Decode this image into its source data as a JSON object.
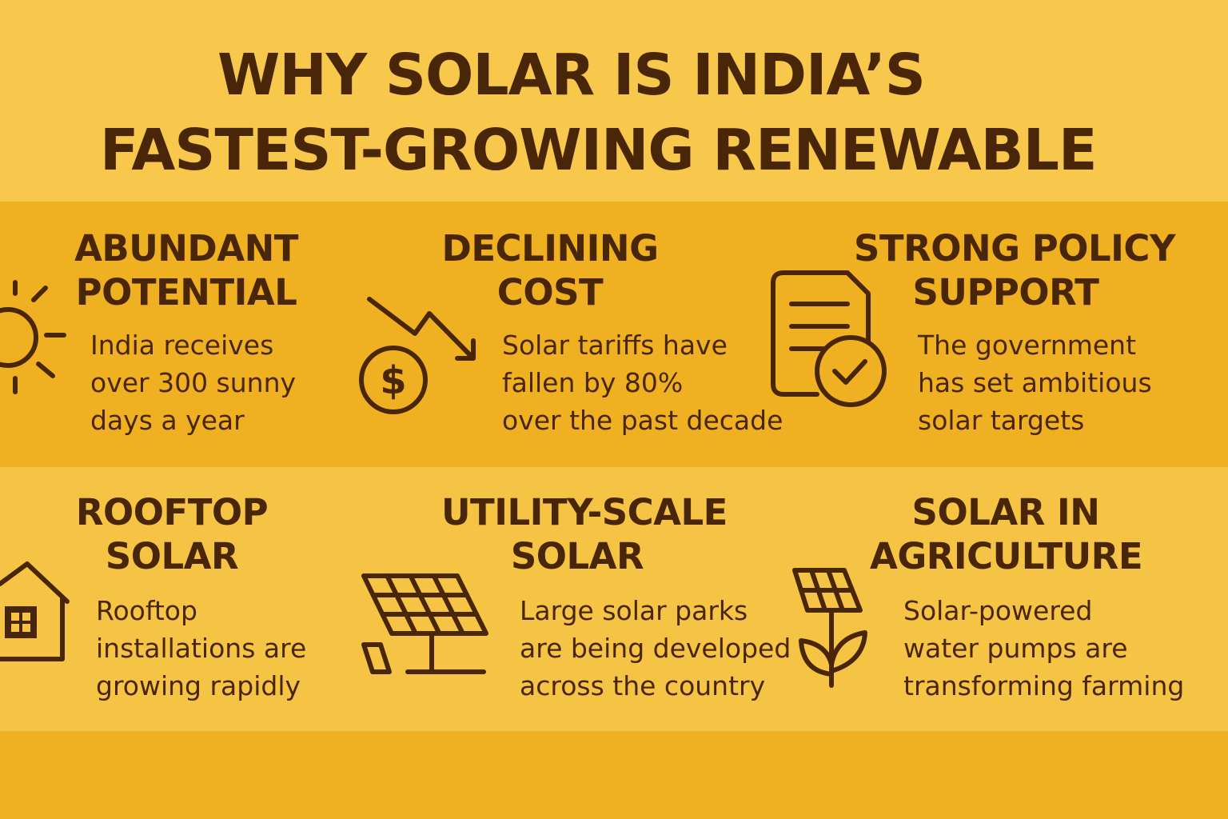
{
  "title": {
    "line1": "WHY SOLAR IS INDIA’S",
    "line2": "FASTEST-GROWING RENEWABLE"
  },
  "colors": {
    "text": "#4a2608",
    "band_light": "#f7c84c",
    "band_dark": "#efb021"
  },
  "cards": [
    {
      "icon": "sun-icon",
      "heading": [
        "ABUNDANT",
        "POTENTIAL"
      ],
      "body": [
        "India receives",
        "over 300 sunny",
        "days a year"
      ]
    },
    {
      "icon": "declining-cost-icon",
      "heading": [
        "DECLINING",
        "COST"
      ],
      "body": [
        "Solar tariffs have",
        "fallen by 80%",
        "over the past decade"
      ]
    },
    {
      "icon": "policy-document-icon",
      "heading": [
        "STRONG POLICY",
        "SUPPORT"
      ],
      "body": [
        "The government",
        "has set ambitious",
        "solar targets"
      ]
    },
    {
      "icon": "house-icon",
      "heading": [
        "ROOFTOP",
        "SOLAR"
      ],
      "body": [
        "Rooftop",
        "installations are",
        "growing rapidly"
      ]
    },
    {
      "icon": "solar-panel-icon",
      "heading": [
        "UTILITY-SCALE",
        "SOLAR"
      ],
      "body": [
        "Large solar parks",
        "are being developed",
        "across the country"
      ]
    },
    {
      "icon": "solar-plant-icon",
      "heading": [
        "SOLAR IN",
        "AGRICULTURE"
      ],
      "body": [
        "Solar-powered",
        "water pumps are",
        "transforming farming"
      ]
    }
  ]
}
